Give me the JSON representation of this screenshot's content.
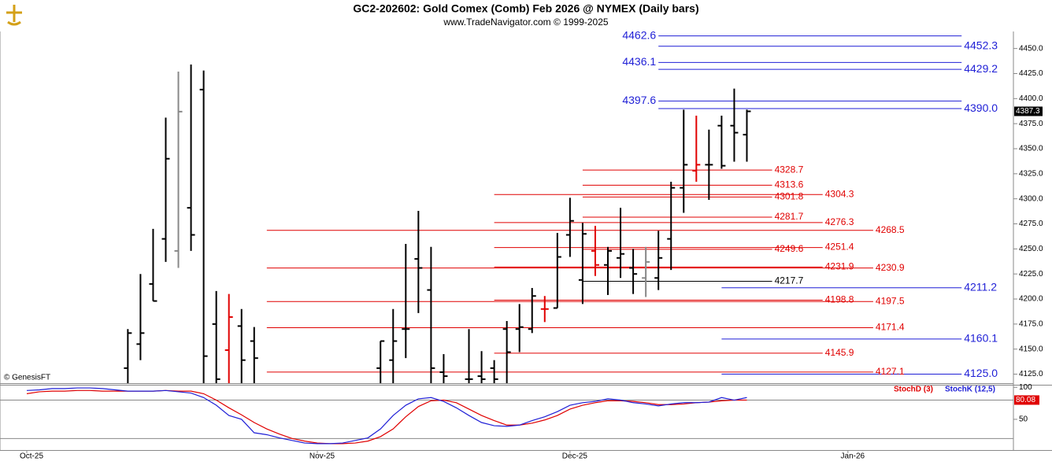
{
  "chart_data": [
    {
      "type": "ohlc",
      "title": "GC2-202602:  Gold Comex (Comb) Feb 2026 @ NYMEX  (Daily bars)",
      "subtitle": "www.TradeNavigator.com © 1999-2025",
      "annotation": "© GenesisFT",
      "xlim": [
        -2.12,
        78.1
      ],
      "xticks": [
        {
          "value": 0,
          "label": "Oct-25"
        },
        {
          "value": 23,
          "label": "Nov-25"
        },
        {
          "value": 43,
          "label": "Dec-25"
        },
        {
          "value": 65,
          "label": "Jan-26"
        }
      ],
      "ylim": [
        4116,
        4467
      ],
      "yticks": [
        {
          "value": 4125,
          "label": "4125.0"
        },
        {
          "value": 4150,
          "label": "4150.0"
        },
        {
          "value": 4175,
          "label": "4175.0"
        },
        {
          "value": 4200,
          "label": "4200.0"
        },
        {
          "value": 4225,
          "label": "4225.0"
        },
        {
          "value": 4250,
          "label": "4250.0"
        },
        {
          "value": 4275,
          "label": "4275.0"
        },
        {
          "value": 4300,
          "label": "4300.0"
        },
        {
          "value": 4325,
          "label": "4325.0"
        },
        {
          "value": 4350,
          "label": "4350.0"
        },
        {
          "value": 4375,
          "label": "4375.0"
        },
        {
          "value": 4400,
          "label": "4400.0"
        },
        {
          "value": 4425,
          "label": "4425.0"
        },
        {
          "value": 4450,
          "label": "4450.0"
        }
      ],
      "open": [
        null,
        null,
        null,
        null,
        null,
        null,
        null,
        null,
        4131,
        4155,
        4215,
        4260,
        4248,
        4291,
        4409,
        4175,
        4149,
        4173,
        4158,
        null,
        null,
        null,
        null,
        null,
        null,
        null,
        null,
        null,
        4131,
        4139,
        4170,
        4240,
        4209,
        4127,
        null,
        4120,
        4123,
        4131,
        4170,
        4170,
        4170,
        4190,
        4191,
        4264,
        4219,
        4248,
        4234,
        4241,
        4231,
        4221,
        4221,
        4260,
        4311,
        4328,
        4334,
        4373,
        4373,
        4364
      ],
      "high": [
        null,
        null,
        null,
        null,
        null,
        null,
        null,
        null,
        4170,
        4225,
        4270,
        4381,
        4427,
        4434,
        4428,
        4208,
        4205,
        4190,
        4172,
        null,
        null,
        null,
        null,
        null,
        null,
        null,
        null,
        null,
        4158,
        4190,
        4255,
        4288,
        4252,
        4145,
        null,
        4170,
        4148,
        4139,
        4178,
        4195,
        4211,
        4203,
        4266,
        4301,
        4276,
        4273,
        4252,
        4291,
        4250,
        4252,
        4268,
        4317,
        4389,
        4383,
        4369,
        4383,
        4410,
        4389
      ],
      "low": [
        null,
        null,
        null,
        null,
        null,
        null,
        null,
        null,
        4105,
        4139,
        4198,
        4237,
        4231,
        4248,
        4100,
        4100,
        4100,
        4100,
        4100,
        null,
        null,
        null,
        null,
        null,
        null,
        null,
        null,
        null,
        4100,
        4100,
        4141,
        4186,
        4100,
        4100,
        null,
        4100,
        4100,
        4100,
        4100,
        4147,
        4166,
        4177,
        4191,
        4242,
        4195,
        4223,
        4204,
        4221,
        4205,
        4202,
        4209,
        4229,
        4286,
        4317,
        4299,
        4330,
        4337,
        4337
      ],
      "close": [
        null,
        null,
        null,
        null,
        null,
        null,
        null,
        null,
        4166,
        4166,
        4198,
        4340,
        4387,
        4264,
        4143,
        4120,
        4182,
        4139,
        4141,
        null,
        null,
        null,
        null,
        null,
        null,
        null,
        null,
        null,
        4158,
        4158,
        4170,
        4231,
        4131,
        4123,
        null,
        4120,
        4120,
        4120,
        4147,
        4172,
        4203,
        4190,
        4242,
        4278,
        4265,
        4234,
        4248,
        4245,
        4225,
        4237,
        4241,
        4311,
        4334,
        4334,
        4334,
        4333,
        4366,
        4387.3
      ],
      "colors": [
        null,
        null,
        null,
        null,
        null,
        null,
        null,
        null,
        "#000000",
        "#000000",
        "#000000",
        "#000000",
        "#888888",
        "#000000",
        "#000000",
        "#000000",
        "#e00000",
        "#000000",
        "#000000",
        null,
        null,
        null,
        null,
        null,
        null,
        null,
        null,
        null,
        "#000000",
        "#000000",
        "#000000",
        "#000000",
        "#000000",
        "#000000",
        null,
        "#000000",
        "#000000",
        "#000000",
        "#000000",
        "#000000",
        "#000000",
        "#e00000",
        "#000000",
        "#000000",
        "#000000",
        "#e00000",
        "#000000",
        "#000000",
        "#000000",
        "#888888",
        "#000000",
        "#000000",
        "#000000",
        "#e00000",
        "#000000",
        "#000000",
        "#000000",
        "#000000"
      ],
      "levels": [
        {
          "value": 4462.6,
          "color": "#1f1fd6",
          "from": 50,
          "to": 74,
          "side": "left"
        },
        {
          "value": 4452.3,
          "color": "#1f1fd6",
          "from": 50,
          "to": 74,
          "side": "right"
        },
        {
          "value": 4436.1,
          "color": "#1f1fd6",
          "from": 50,
          "to": 74,
          "side": "left"
        },
        {
          "value": 4429.2,
          "color": "#1f1fd6",
          "from": 50,
          "to": 74,
          "side": "right"
        },
        {
          "value": 4397.6,
          "color": "#1f1fd6",
          "from": 50,
          "to": 74,
          "side": "left"
        },
        {
          "value": 4390,
          "label": "4390.0",
          "color": "#1f1fd6",
          "from": 50,
          "to": 74,
          "side": "right"
        },
        {
          "value": 4211.2,
          "color": "#1f1fd6",
          "from": 55,
          "to": 74,
          "side": "right"
        },
        {
          "value": 4160.1,
          "color": "#1f1fd6",
          "from": 55,
          "to": 74,
          "side": "right"
        },
        {
          "value": 4125,
          "label": "4125.0",
          "color": "#1f1fd6",
          "from": 55,
          "to": 74,
          "side": "right"
        },
        {
          "value": 4217.7,
          "color": "#000000",
          "from": 44,
          "to": 59,
          "side": "right"
        },
        {
          "value": 4328.7,
          "color": "#e00000",
          "from": 44,
          "to": 59,
          "side": "right"
        },
        {
          "value": 4313.6,
          "color": "#e00000",
          "from": 44,
          "to": 59,
          "side": "right"
        },
        {
          "value": 4304.3,
          "color": "#e00000",
          "from": 37,
          "to": 63,
          "side": "right"
        },
        {
          "value": 4301.8,
          "color": "#e00000",
          "from": 44,
          "to": 59,
          "side": "right"
        },
        {
          "value": 4281.7,
          "color": "#e00000",
          "from": 44,
          "to": 59,
          "side": "right"
        },
        {
          "value": 4276.3,
          "color": "#e00000",
          "from": 37,
          "to": 63,
          "side": "right"
        },
        {
          "value": 4268.5,
          "color": "#e00000",
          "from": 19,
          "to": 67,
          "side": "right"
        },
        {
          "value": 4251.4,
          "color": "#e00000",
          "from": 37,
          "to": 63,
          "side": "right"
        },
        {
          "value": 4249.6,
          "color": "#e00000",
          "from": 44,
          "to": 59,
          "side": "right"
        },
        {
          "value": 4231.9,
          "color": "#e00000",
          "from": 37,
          "to": 63,
          "side": "right"
        },
        {
          "value": 4230.9,
          "color": "#e00000",
          "from": 19,
          "to": 67,
          "side": "right"
        },
        {
          "value": 4198.8,
          "color": "#e00000",
          "from": 37,
          "to": 63,
          "side": "right"
        },
        {
          "value": 4197.5,
          "color": "#e00000",
          "from": 19,
          "to": 67,
          "side": "right"
        },
        {
          "value": 4171.4,
          "color": "#e00000",
          "from": 19,
          "to": 67,
          "side": "right"
        },
        {
          "value": 4145.9,
          "color": "#e00000",
          "from": 37,
          "to": 63,
          "side": "right"
        },
        {
          "value": 4127.1,
          "color": "#e00000",
          "from": 19,
          "to": 67,
          "side": "right"
        }
      ]
    },
    {
      "type": "line",
      "ylim": [
        2,
        104
      ],
      "yticks": [
        50,
        100
      ],
      "bands": [
        20,
        80
      ],
      "series": [
        {
          "name": "StochD (3)",
          "color": "#e00000",
          "values": [
            90,
            93,
            94,
            94,
            95,
            95,
            94,
            94,
            94,
            94,
            94,
            95,
            94,
            94,
            90,
            80,
            68,
            57,
            45,
            35,
            27,
            20,
            16,
            13,
            12,
            12,
            13,
            16,
            23,
            35,
            54,
            70,
            79,
            80,
            76,
            66,
            56,
            48,
            41,
            41,
            44,
            49,
            56,
            66,
            72,
            76,
            79,
            79,
            78,
            76,
            73,
            73,
            74,
            76,
            77,
            79,
            80,
            80.08
          ]
        },
        {
          "name": "StochK (12,5)",
          "color": "#1f1fd6",
          "values": [
            95,
            96,
            98,
            98,
            99,
            99,
            98,
            96,
            94,
            94,
            94,
            95,
            93,
            91,
            84,
            72,
            56,
            50,
            29,
            26,
            21,
            17,
            13,
            12,
            12,
            13,
            17,
            21,
            35,
            56,
            72,
            82,
            84,
            78,
            68,
            56,
            45,
            40,
            39,
            41,
            48,
            54,
            62,
            72,
            76,
            78,
            82,
            80,
            76,
            74,
            71,
            74,
            76,
            76,
            77,
            84,
            80,
            84
          ]
        }
      ]
    }
  ]
}
